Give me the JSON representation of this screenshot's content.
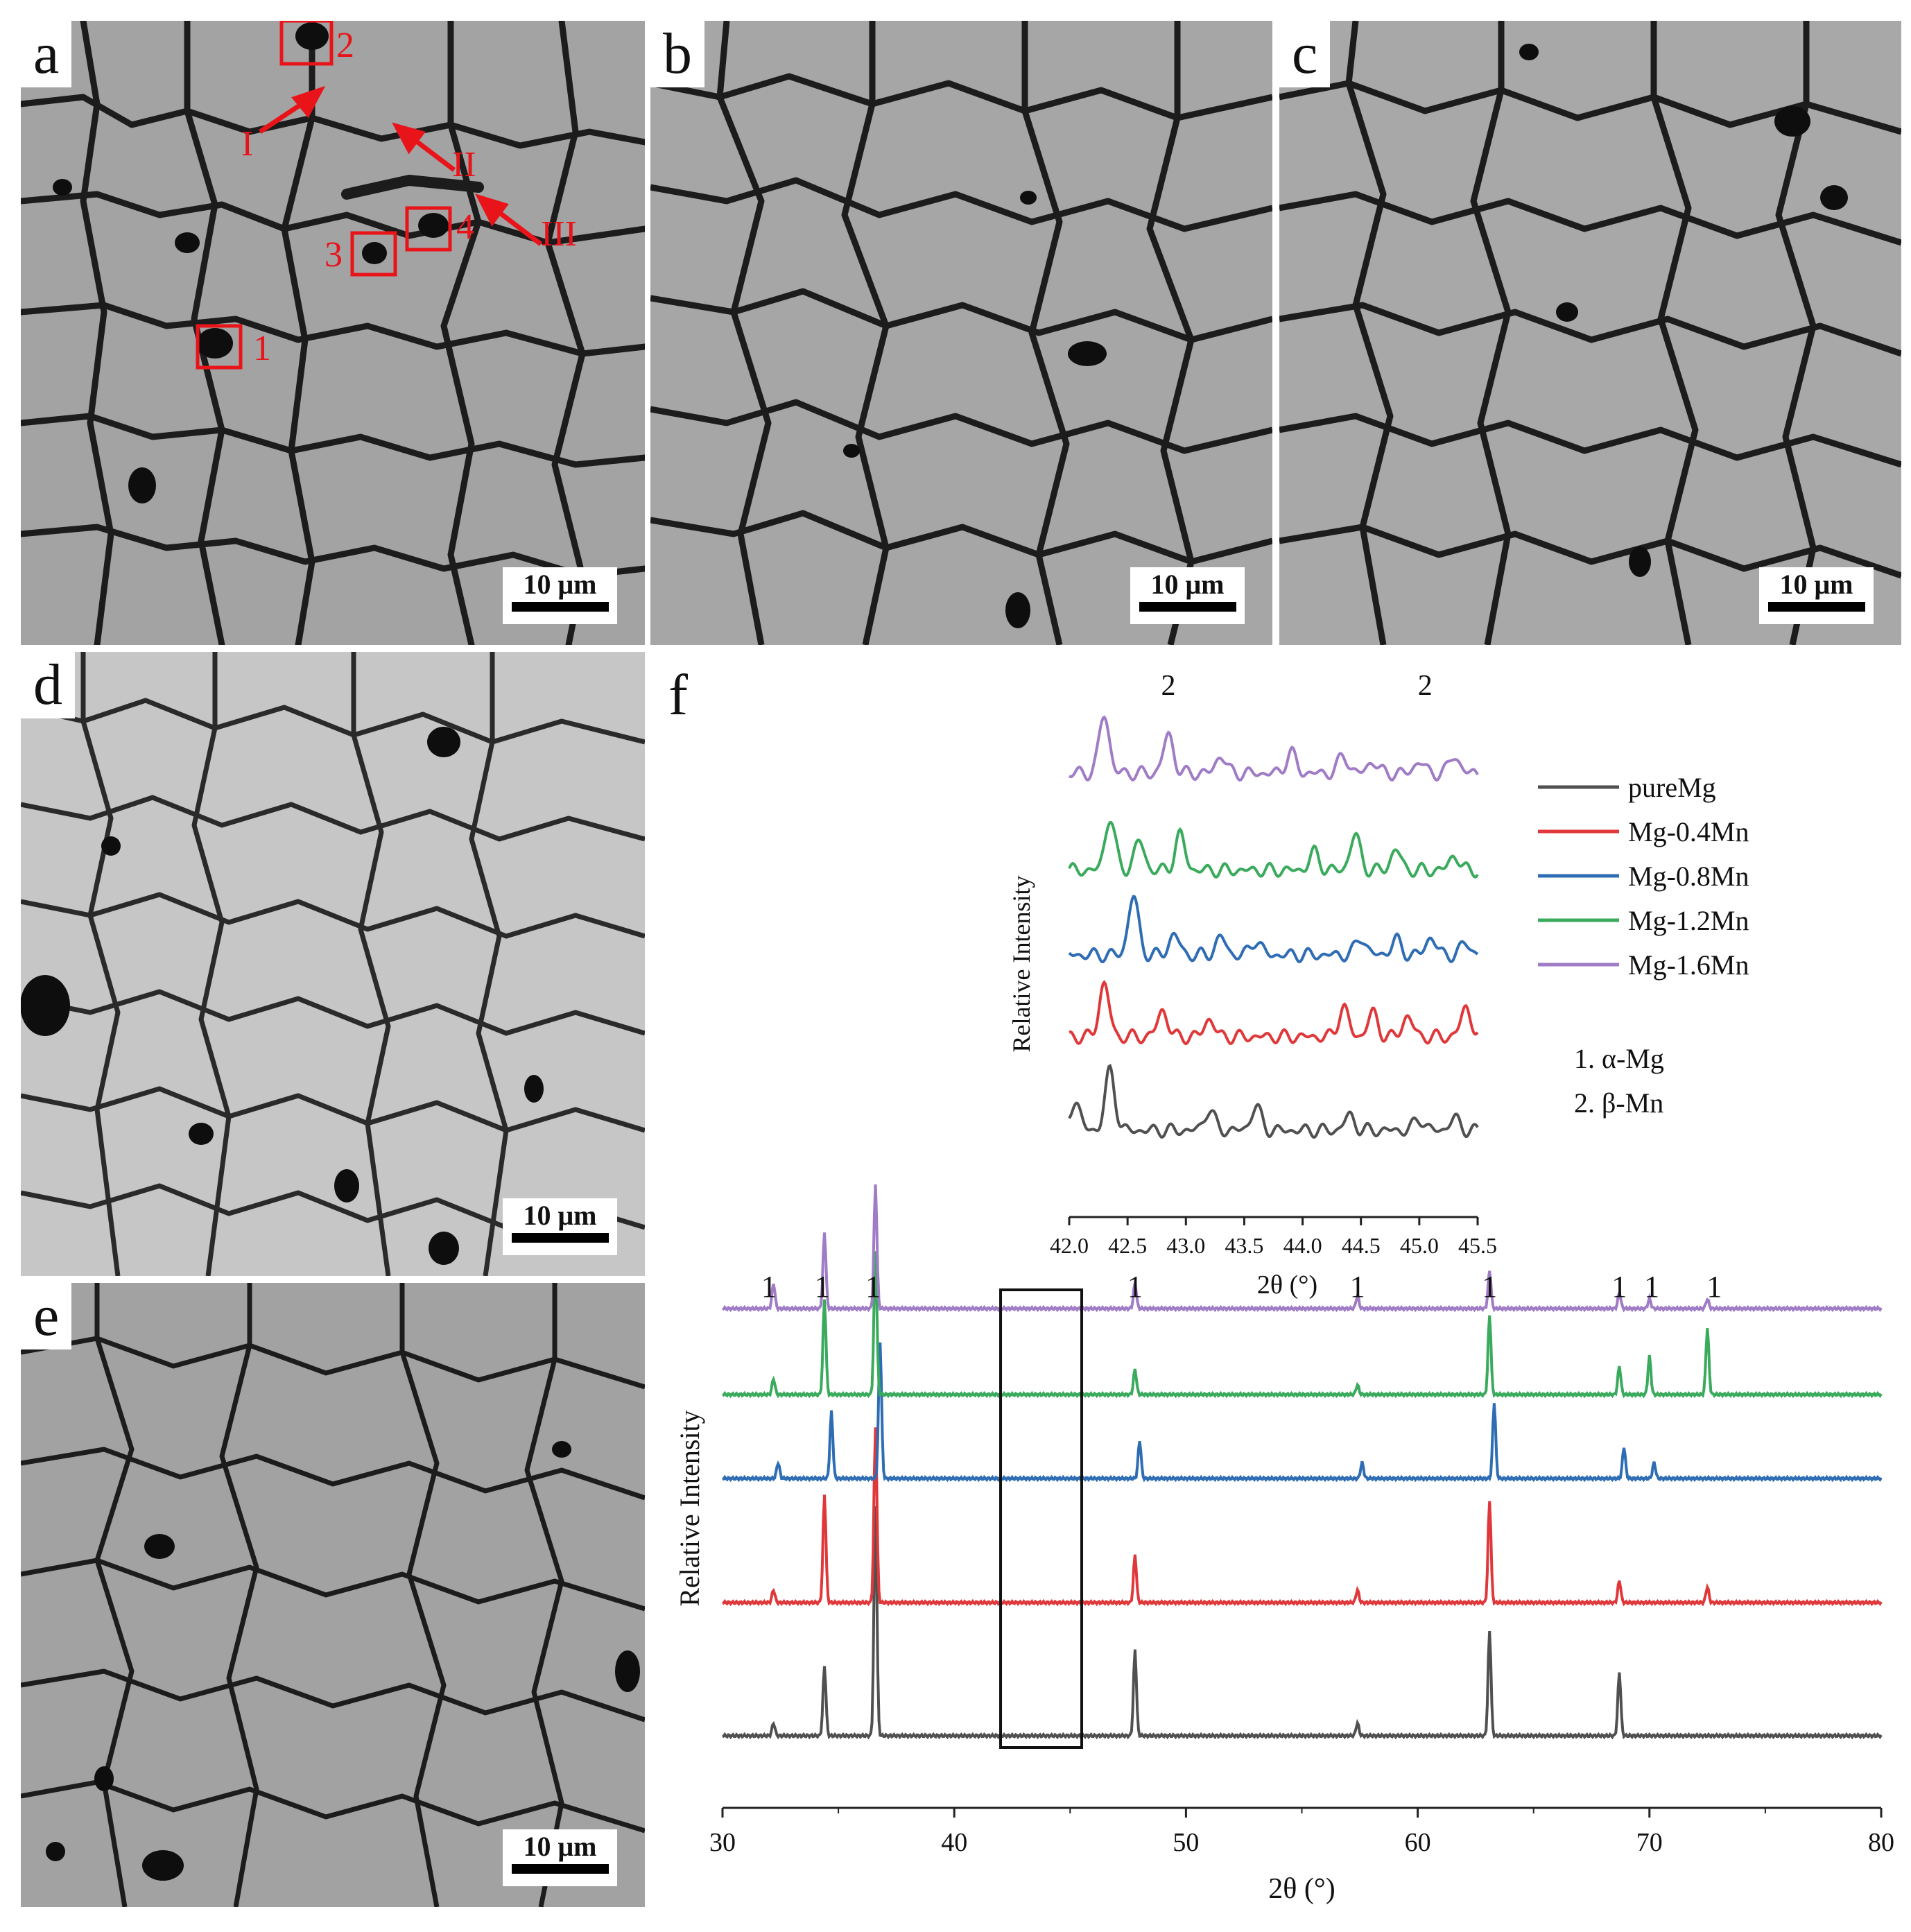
{
  "panels": {
    "a": {
      "letter": "a",
      "scale": "10 μm"
    },
    "b": {
      "letter": "b",
      "scale": "10 μm"
    },
    "c": {
      "letter": "c",
      "scale": "10 μm"
    },
    "d": {
      "letter": "d",
      "scale": "10 μm"
    },
    "e": {
      "letter": "e",
      "scale": "10 μm"
    },
    "f": {
      "letter": "f"
    }
  },
  "annotations_a": {
    "box_labels": [
      "1",
      "2",
      "3",
      "4"
    ],
    "arrow_labels": [
      "I",
      "II",
      "III"
    ]
  },
  "colors": {
    "pureMg": "#505050",
    "Mg-0.4Mn": "#e0383a",
    "Mg-0.8Mn": "#2e6db4",
    "Mg-1.2Mn": "#3aaa5c",
    "Mg-1.6Mn": "#a07cc6",
    "annotation": "#e8141a"
  },
  "chart_data": [
    {
      "type": "line",
      "name": "main",
      "xlabel": "2θ (°)",
      "ylabel": "Relative Intensity",
      "xlim": [
        30,
        80
      ],
      "xticks": [
        "30",
        "40",
        "50",
        "60",
        "70",
        "80"
      ],
      "series": [
        {
          "name": "pureMg",
          "peaks": [
            [
              32.2,
              0.04
            ],
            [
              34.4,
              0.22
            ],
            [
              36.6,
              0.72
            ],
            [
              47.8,
              0.27
            ],
            [
              57.4,
              0.04
            ],
            [
              63.1,
              0.33
            ],
            [
              68.7,
              0.2
            ]
          ]
        },
        {
          "name": "Mg-0.4Mn",
          "peaks": [
            [
              32.2,
              0.04
            ],
            [
              34.4,
              0.34
            ],
            [
              36.6,
              0.55
            ],
            [
              47.8,
              0.15
            ],
            [
              57.4,
              0.04
            ],
            [
              63.1,
              0.32
            ],
            [
              68.7,
              0.07
            ],
            [
              72.5,
              0.05
            ]
          ]
        },
        {
          "name": "Mg-0.8Mn",
          "peaks": [
            [
              32.4,
              0.05
            ],
            [
              34.7,
              0.21
            ],
            [
              36.8,
              0.43
            ],
            [
              48.0,
              0.12
            ],
            [
              57.6,
              0.05
            ],
            [
              63.3,
              0.24
            ],
            [
              68.9,
              0.1
            ],
            [
              70.2,
              0.05
            ]
          ]
        },
        {
          "name": "Mg-1.2Mn",
          "peaks": [
            [
              32.2,
              0.05
            ],
            [
              34.4,
              0.3
            ],
            [
              36.6,
              0.45
            ],
            [
              47.8,
              0.08
            ],
            [
              57.4,
              0.03
            ],
            [
              63.1,
              0.25
            ],
            [
              68.7,
              0.09
            ],
            [
              70.0,
              0.12
            ],
            [
              72.5,
              0.21
            ]
          ]
        },
        {
          "name": "Mg-1.6Mn",
          "peaks": [
            [
              32.2,
              0.08
            ],
            [
              34.4,
              0.24
            ],
            [
              36.6,
              0.39
            ],
            [
              47.8,
              0.08
            ],
            [
              57.4,
              0.04
            ],
            [
              63.1,
              0.12
            ],
            [
              68.7,
              0.05
            ],
            [
              70.0,
              0.03
            ],
            [
              72.5,
              0.03
            ]
          ]
        }
      ],
      "peak_labels": [
        {
          "x": 32.0,
          "text": "1"
        },
        {
          "x": 34.3,
          "text": "1"
        },
        {
          "x": 36.5,
          "text": "1"
        },
        {
          "x": 47.8,
          "text": "1"
        },
        {
          "x": 57.4,
          "text": "1"
        },
        {
          "x": 63.1,
          "text": "1"
        },
        {
          "x": 68.7,
          "text": "1"
        },
        {
          "x": 70.1,
          "text": "1"
        },
        {
          "x": 72.8,
          "text": "1"
        }
      ],
      "highlight_range": [
        42.0,
        45.5
      ]
    },
    {
      "type": "line",
      "name": "inset",
      "xlabel": "2θ (°)",
      "ylabel": "Relative Intensity",
      "xlim": [
        42.0,
        45.5
      ],
      "xticks": [
        "42.0",
        "42.5",
        "43.0",
        "43.5",
        "44.0",
        "44.5",
        "45.0",
        "45.5"
      ],
      "series": [
        {
          "name": "pureMg",
          "peaks": [
            [
              42.05,
              0.5
            ],
            [
              42.35,
              1.0
            ],
            [
              43.2,
              0.35
            ],
            [
              43.6,
              0.4
            ],
            [
              44.4,
              0.25
            ],
            [
              45.0,
              0.2
            ],
            [
              45.3,
              0.2
            ]
          ]
        },
        {
          "name": "Mg-0.4Mn",
          "peaks": [
            [
              42.3,
              0.9
            ],
            [
              42.8,
              0.45
            ],
            [
              43.2,
              0.3
            ],
            [
              44.35,
              0.5
            ],
            [
              44.6,
              0.4
            ],
            [
              44.9,
              0.35
            ],
            [
              45.4,
              0.5
            ]
          ]
        },
        {
          "name": "Mg-0.8Mn",
          "peaks": [
            [
              42.55,
              1.0
            ],
            [
              42.9,
              0.35
            ],
            [
              43.3,
              0.3
            ],
            [
              43.6,
              0.25
            ],
            [
              44.5,
              0.3
            ],
            [
              44.8,
              0.25
            ],
            [
              45.1,
              0.3
            ],
            [
              45.4,
              0.2
            ]
          ]
        },
        {
          "name": "Mg-1.2Mn",
          "peaks": [
            [
              42.35,
              0.9
            ],
            [
              42.6,
              0.5
            ],
            [
              42.95,
              0.6
            ],
            [
              44.1,
              0.3
            ],
            [
              44.45,
              0.6
            ],
            [
              44.8,
              0.35
            ],
            [
              45.3,
              0.25
            ]
          ]
        },
        {
          "name": "Mg-1.6Mn",
          "peaks": [
            [
              42.3,
              1.0
            ],
            [
              42.85,
              0.65
            ],
            [
              43.3,
              0.3
            ],
            [
              43.9,
              0.35
            ],
            [
              44.35,
              0.3
            ],
            [
              44.6,
              0.2
            ],
            [
              45.0,
              0.2
            ],
            [
              45.3,
              0.3
            ]
          ]
        }
      ],
      "peak_labels": [
        {
          "x": 42.85,
          "text": "2"
        },
        {
          "x": 45.05,
          "text": "2"
        }
      ]
    }
  ],
  "legend": {
    "items": [
      "pureMg",
      "Mg-0.4Mn",
      "Mg-0.8Mn",
      "Mg-1.2Mn",
      "Mg-1.6Mn"
    ],
    "phases": [
      "1.  α-Mg",
      "2.  β-Mn"
    ]
  }
}
